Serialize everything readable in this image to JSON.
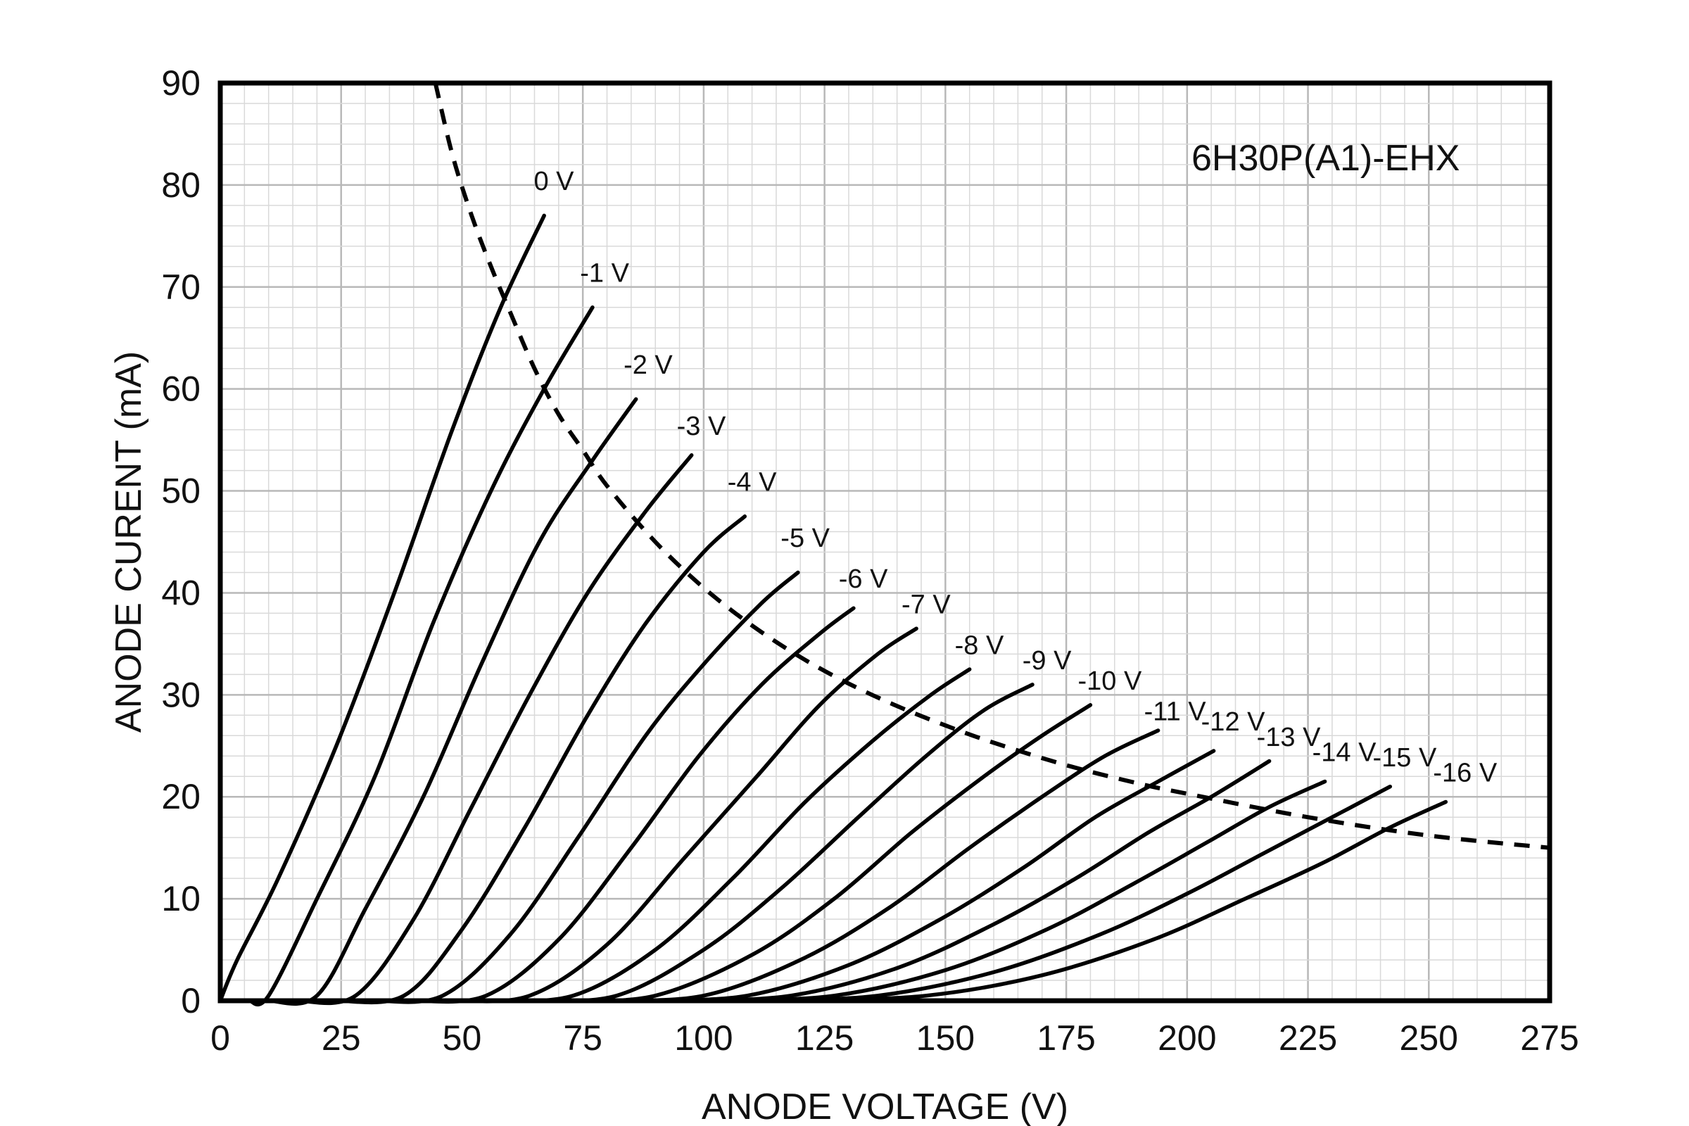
{
  "chart_data": {
    "type": "line",
    "title": "6H30P(A1)-EHX",
    "xlabel": "ANODE VOLTAGE (V)",
    "ylabel": "ANODE CURENT (mA)",
    "xlim": [
      0,
      275
    ],
    "ylim": [
      0,
      90
    ],
    "x_ticks": [
      0,
      25,
      50,
      75,
      100,
      125,
      150,
      175,
      200,
      225,
      250,
      275
    ],
    "y_ticks": [
      0,
      10,
      20,
      30,
      40,
      50,
      60,
      70,
      80,
      90
    ],
    "x_tick_labels": [
      "0",
      "25",
      "50",
      "75",
      "100",
      "125",
      "150",
      "175",
      "200",
      "225",
      "250",
      "275"
    ],
    "y_tick_labels": [
      "0",
      "10",
      "20",
      "30",
      "40",
      "50",
      "60",
      "70",
      "80",
      "90"
    ],
    "grid": true,
    "series": [
      {
        "name": "0 V",
        "points": [
          [
            0,
            0
          ],
          [
            3.5,
            4
          ],
          [
            12,
            12
          ],
          [
            24,
            25
          ],
          [
            36,
            40
          ],
          [
            48,
            56
          ],
          [
            58,
            68
          ],
          [
            67,
            77
          ]
        ]
      },
      {
        "name": "-1 V",
        "points": [
          [
            6,
            0
          ],
          [
            10,
            0.5
          ],
          [
            20,
            10
          ],
          [
            32,
            22
          ],
          [
            44,
            37
          ],
          [
            56,
            50
          ],
          [
            67,
            60
          ],
          [
            77,
            68
          ]
        ]
      },
      {
        "name": "-2 V",
        "points": [
          [
            10,
            0
          ],
          [
            20,
            0.5
          ],
          [
            30,
            9
          ],
          [
            42,
            20
          ],
          [
            54,
            33
          ],
          [
            66,
            45
          ],
          [
            77,
            53
          ],
          [
            86,
            59
          ]
        ]
      },
      {
        "name": "-3 V",
        "points": [
          [
            16,
            0
          ],
          [
            28,
            0.5
          ],
          [
            40,
            8
          ],
          [
            52,
            19
          ],
          [
            64,
            30
          ],
          [
            76,
            40
          ],
          [
            88,
            48
          ],
          [
            97.5,
            53.5
          ]
        ]
      },
      {
        "name": "-4 V",
        "points": [
          [
            24,
            0
          ],
          [
            38,
            0.5
          ],
          [
            50,
            7
          ],
          [
            63,
            17
          ],
          [
            76,
            28
          ],
          [
            88,
            37
          ],
          [
            100,
            44
          ],
          [
            108.5,
            47.5
          ]
        ]
      },
      {
        "name": "-5 V",
        "points": [
          [
            32,
            0
          ],
          [
            46,
            0.5
          ],
          [
            60,
            6.5
          ],
          [
            74,
            16
          ],
          [
            88,
            26
          ],
          [
            100,
            33
          ],
          [
            112,
            39
          ],
          [
            119.5,
            42
          ]
        ]
      },
      {
        "name": "-6 V",
        "points": [
          [
            40,
            0
          ],
          [
            55,
            0.5
          ],
          [
            70,
            6
          ],
          [
            85,
            15
          ],
          [
            99,
            24
          ],
          [
            112,
            31
          ],
          [
            124,
            36
          ],
          [
            131,
            38.5
          ]
        ]
      },
      {
        "name": "-7 V",
        "points": [
          [
            48,
            0
          ],
          [
            64,
            0.5
          ],
          [
            80,
            5.5
          ],
          [
            96,
            14
          ],
          [
            111,
            22
          ],
          [
            124,
            29
          ],
          [
            136,
            34
          ],
          [
            144,
            36.5
          ]
        ]
      },
      {
        "name": "-8 V",
        "points": [
          [
            56,
            0
          ],
          [
            73,
            0.5
          ],
          [
            90,
            5
          ],
          [
            106,
            12
          ],
          [
            121,
            19.5
          ],
          [
            135,
            25.5
          ],
          [
            147,
            30
          ],
          [
            155,
            32.5
          ]
        ]
      },
      {
        "name": "-9 V",
        "points": [
          [
            64,
            0
          ],
          [
            82,
            0.5
          ],
          [
            100,
            5
          ],
          [
            116,
            11
          ],
          [
            132,
            18
          ],
          [
            146,
            24
          ],
          [
            158,
            28.5
          ],
          [
            168,
            31
          ]
        ]
      },
      {
        "name": "-10 V",
        "points": [
          [
            72,
            0
          ],
          [
            90,
            0.5
          ],
          [
            110,
            4.5
          ],
          [
            127,
            10
          ],
          [
            143,
            16.5
          ],
          [
            158,
            22
          ],
          [
            170,
            26
          ],
          [
            180,
            29
          ]
        ]
      },
      {
        "name": "-11 V",
        "points": [
          [
            80,
            0
          ],
          [
            100,
            0.5
          ],
          [
            120,
            4
          ],
          [
            138,
            9
          ],
          [
            155,
            15
          ],
          [
            170,
            20
          ],
          [
            183,
            24
          ],
          [
            194,
            26.5
          ]
        ]
      },
      {
        "name": "-12 V",
        "points": [
          [
            88,
            0
          ],
          [
            109,
            0.5
          ],
          [
            130,
            3.5
          ],
          [
            149,
            8
          ],
          [
            166,
            13
          ],
          [
            181,
            18
          ],
          [
            194,
            21.5
          ],
          [
            205.5,
            24.5
          ]
        ]
      },
      {
        "name": "-13 V",
        "points": [
          [
            96,
            0
          ],
          [
            118,
            0.5
          ],
          [
            140,
            3.2
          ],
          [
            160,
            7.5
          ],
          [
            177,
            12
          ],
          [
            192,
            16.5
          ],
          [
            205,
            20
          ],
          [
            217,
            23.5
          ]
        ]
      },
      {
        "name": "-14 V",
        "points": [
          [
            104,
            0
          ],
          [
            127,
            0.5
          ],
          [
            150,
            3
          ],
          [
            171,
            7
          ],
          [
            189,
            11.5
          ],
          [
            204,
            15.5
          ],
          [
            217,
            19
          ],
          [
            228.5,
            21.5
          ]
        ]
      },
      {
        "name": "-15 V",
        "points": [
          [
            112,
            0
          ],
          [
            136,
            0.5
          ],
          [
            160,
            2.8
          ],
          [
            182,
            6.5
          ],
          [
            200,
            10.5
          ],
          [
            216,
            14.5
          ],
          [
            230,
            18
          ],
          [
            242,
            21
          ]
        ]
      },
      {
        "name": "-16 V",
        "points": [
          [
            120,
            0
          ],
          [
            146,
            0.5
          ],
          [
            170,
            2.5
          ],
          [
            193,
            6
          ],
          [
            212,
            10
          ],
          [
            228,
            13.5
          ],
          [
            242,
            17
          ],
          [
            253.5,
            19.5
          ]
        ]
      }
    ],
    "annotations": [
      {
        "text": "0 V",
        "x": 69,
        "y": 79.5
      },
      {
        "text": "-1 V",
        "x": 79.5,
        "y": 70.5
      },
      {
        "text": "-2 V",
        "x": 88.5,
        "y": 61.5
      },
      {
        "text": "-3 V",
        "x": 99.5,
        "y": 55.5
      },
      {
        "text": "-4 V",
        "x": 110,
        "y": 50
      },
      {
        "text": "-5 V",
        "x": 121,
        "y": 44.5
      },
      {
        "text": "-6 V",
        "x": 133,
        "y": 40.5
      },
      {
        "text": "-7 V",
        "x": 146,
        "y": 38
      },
      {
        "text": "-8 V",
        "x": 157,
        "y": 34
      },
      {
        "text": "-9 V",
        "x": 171,
        "y": 32.5
      },
      {
        "text": "-10 V",
        "x": 184,
        "y": 30.5
      },
      {
        "text": "-11 V",
        "x": 197.5,
        "y": 27.5
      },
      {
        "text": "-12 V",
        "x": 209.5,
        "y": 26.5
      },
      {
        "text": "-13 V",
        "x": 221,
        "y": 25
      },
      {
        "text": "-14 V",
        "x": 232.5,
        "y": 23.5
      },
      {
        "text": "-15 V",
        "x": 245,
        "y": 23
      },
      {
        "text": "-16 V",
        "x": 257.5,
        "y": 21.5
      }
    ],
    "dissipation_curve": {
      "style": "dashed",
      "points": [
        [
          44.5,
          90
        ],
        [
          48,
          83
        ],
        [
          52,
          77
        ],
        [
          56,
          72
        ],
        [
          60,
          67.5
        ],
        [
          65,
          62
        ],
        [
          70,
          57.5
        ],
        [
          75,
          54
        ],
        [
          80,
          50.5
        ],
        [
          90,
          45
        ],
        [
          100,
          40.5
        ],
        [
          110,
          36.8
        ],
        [
          120,
          33.7
        ],
        [
          130,
          31.1
        ],
        [
          140,
          28.9
        ],
        [
          150,
          27
        ],
        [
          160,
          25.3
        ],
        [
          175,
          23.1
        ],
        [
          190,
          21.3
        ],
        [
          200,
          20.3
        ],
        [
          225,
          18
        ],
        [
          250,
          16.2
        ],
        [
          275,
          15
        ]
      ]
    }
  }
}
